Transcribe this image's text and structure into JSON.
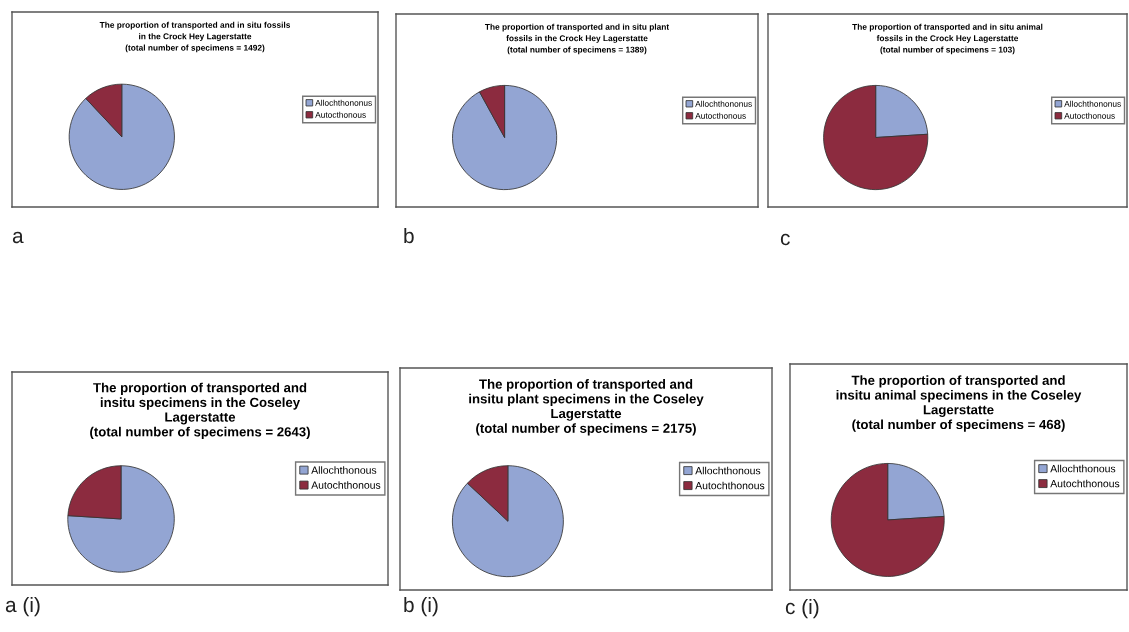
{
  "chart_data": [
    {
      "type": "pie",
      "title": "The proportion of transported and in situ fossils\nin the Crock Hey Lagerstatte\n(total number of specimens = 1492)",
      "categories": [
        "Allochthononus",
        "Autocthonous"
      ],
      "values": [
        88,
        12
      ],
      "colors": [
        "#93a5d3",
        "#8c2b3f"
      ],
      "legend": "right",
      "annotations": [
        "a"
      ]
    },
    {
      "type": "pie",
      "title": "The proportion of transported and in situ plant\nfossils in the Crock Hey Lagerstatte\n(total number of specimens = 1389)",
      "categories": [
        "Allochthononus",
        "Autocthonous"
      ],
      "values": [
        92,
        8
      ],
      "colors": [
        "#93a5d3",
        "#8c2b3f"
      ],
      "legend": "right",
      "annotations": [
        "b"
      ]
    },
    {
      "type": "pie",
      "title": "The proportion of transported and in situ animal\nfossils in the Crock Hey Lagerstatte\n(total number of specimens = 103)",
      "categories": [
        "Allochthononus",
        "Autocthonous"
      ],
      "values": [
        24,
        76
      ],
      "colors": [
        "#93a5d3",
        "#8c2b3f"
      ],
      "legend": "right",
      "annotations": [
        "c"
      ]
    },
    {
      "type": "pie",
      "title": "The proportion of transported and\ninsitu specimens in the Coseley\nLagerstatte\n(total number of specimens = 2643)",
      "categories": [
        "Allochthonous",
        "Autochthonous"
      ],
      "values": [
        76,
        24
      ],
      "colors": [
        "#93a5d3",
        "#8c2b3f"
      ],
      "legend": "right",
      "annotations": [
        "a (i)"
      ]
    },
    {
      "type": "pie",
      "title": "The proportion of transported and\ninsitu plant specimens in the Coseley\nLagerstatte\n(total number of specimens = 2175)",
      "categories": [
        "Allochthonous",
        "Autochthonous"
      ],
      "values": [
        87,
        13
      ],
      "colors": [
        "#93a5d3",
        "#8c2b3f"
      ],
      "legend": "right",
      "annotations": [
        "b (i)"
      ]
    },
    {
      "type": "pie",
      "title": "The proportion of transported and\ninsitu animal specimens in the Coseley\nLagerstatte\n(total number of specimens = 468)",
      "categories": [
        "Allochthonous",
        "Autochthonous"
      ],
      "values": [
        24,
        76
      ],
      "colors": [
        "#93a5d3",
        "#8c2b3f"
      ],
      "legend": "right",
      "annotations": [
        "c (i)"
      ]
    }
  ]
}
